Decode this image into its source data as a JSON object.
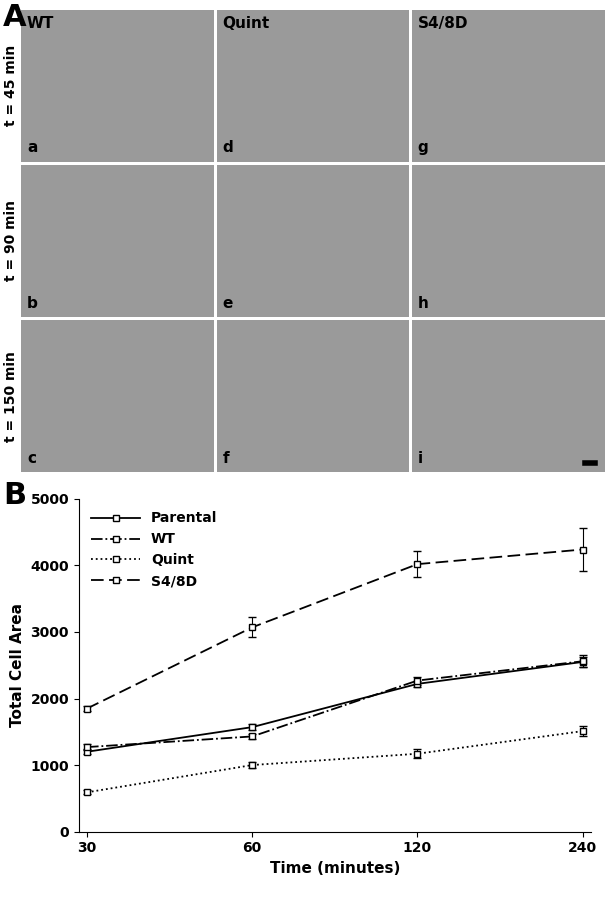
{
  "panel_labels": [
    "A",
    "B"
  ],
  "image_grid": {
    "columns": [
      "WT",
      "Quint",
      "S4/8D"
    ],
    "rows": [
      "t = 45 min",
      "t = 90 min",
      "t = 150 min"
    ],
    "cell_labels": [
      [
        "a",
        "d",
        "g"
      ],
      [
        "b",
        "e",
        "h"
      ],
      [
        "c",
        "f",
        "i"
      ]
    ]
  },
  "chart_data": {
    "type": "line",
    "x_label": "Time (minutes)",
    "y_label": "Total Cell Area",
    "categories": [
      "30",
      "60",
      "120",
      "240"
    ],
    "ylim": [
      0,
      5000
    ],
    "yticks": [
      0,
      1000,
      2000,
      3000,
      4000,
      5000
    ],
    "legend": "upper left",
    "series": [
      {
        "name": "Parental",
        "color": "#000000",
        "marker": "square",
        "line_style": "solid",
        "values": [
          1200,
          1570,
          2220,
          2550
        ],
        "errors": [
          40,
          40,
          50,
          80
        ]
      },
      {
        "name": "WT",
        "color": "#000000",
        "marker": "square",
        "line_style": "dashdot",
        "values": [
          1270,
          1430,
          2270,
          2560
        ],
        "errors": [
          40,
          40,
          60,
          90
        ]
      },
      {
        "name": "Quint",
        "color": "#000000",
        "marker": "square",
        "line_style": "dotted",
        "values": [
          590,
          1000,
          1170,
          1510
        ],
        "errors": [
          30,
          40,
          70,
          80
        ]
      },
      {
        "name": "S4/8D",
        "color": "#000000",
        "marker": "square",
        "line_style": "dashed",
        "values": [
          1850,
          3070,
          4020,
          4240
        ],
        "errors": [
          40,
          150,
          200,
          320
        ]
      }
    ]
  }
}
